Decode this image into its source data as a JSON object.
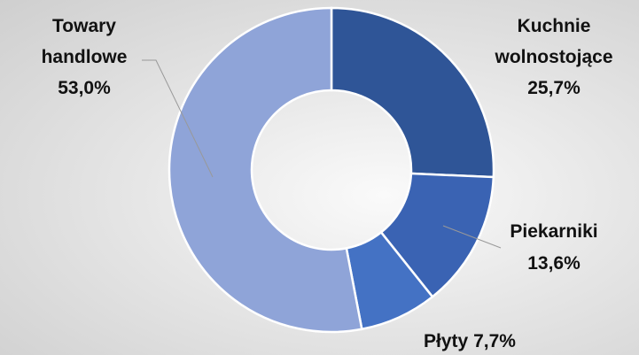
{
  "chart_data": {
    "type": "donut",
    "categories": [
      "Kuchnie wolnostojące",
      "Piekarniki",
      "Płyty",
      "Towary handlowe"
    ],
    "values": [
      25.7,
      13.6,
      7.7,
      53.0
    ],
    "value_labels": [
      "25,7%",
      "13,6%",
      "7,7%",
      "53,0%"
    ],
    "colors": [
      "#2f5597",
      "#3a63b3",
      "#4472c4",
      "#8fa4d8"
    ]
  }
}
